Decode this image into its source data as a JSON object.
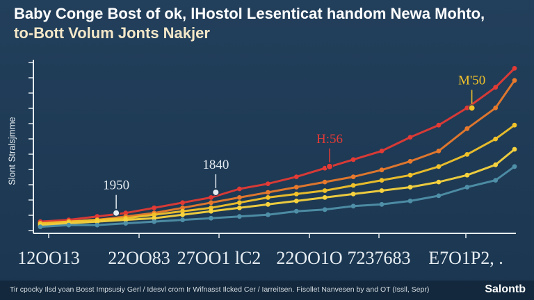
{
  "chart_data": {
    "type": "line",
    "title_line1": "Baby Conge Bost of ok, lHostol Lesenticat handom Newa Mohto,",
    "title_line2": "to-Bott Volum Jonts Nakjer",
    "ylabel": "Slont Stralsjmme",
    "x_ticks": [
      "12OO13",
      "22OO83",
      "27OO1 lC2",
      "22OO1O",
      "7237683",
      "E7O1P2, ."
    ],
    "xlim": [
      0,
      10
    ],
    "ylim": [
      0,
      100
    ],
    "series": [
      {
        "name": "red",
        "color": "#e23a35",
        "x": [
          0.0,
          0.6,
          1.2,
          1.8,
          2.4,
          3.0,
          3.6,
          4.2,
          4.8,
          5.4,
          6.0,
          6.6,
          7.2,
          7.8,
          8.4,
          9.0,
          9.6,
          10.0
        ],
        "y": [
          6,
          7,
          9,
          11,
          14,
          17,
          20,
          25,
          28,
          32,
          37,
          42,
          47,
          55,
          62,
          72,
          84,
          95
        ]
      },
      {
        "name": "orange",
        "color": "#e8792c",
        "x": [
          0.0,
          0.6,
          1.2,
          1.8,
          2.4,
          3.0,
          3.6,
          4.2,
          4.8,
          5.4,
          6.0,
          6.6,
          7.2,
          7.8,
          8.4,
          9.0,
          9.6,
          10.0
        ],
        "y": [
          5,
          6,
          7,
          9,
          11,
          14,
          17,
          20,
          23,
          26,
          29,
          32,
          36,
          41,
          47,
          60,
          72,
          88
        ]
      },
      {
        "name": "gold",
        "color": "#f1c22a",
        "x": [
          0.0,
          0.6,
          1.2,
          1.8,
          2.4,
          3.0,
          3.6,
          4.2,
          4.8,
          5.4,
          6.0,
          6.6,
          7.2,
          7.8,
          8.4,
          9.0,
          9.6,
          10.0
        ],
        "y": [
          5,
          6,
          7,
          8,
          10,
          12,
          14,
          17,
          20,
          22,
          24,
          27,
          30,
          33,
          38,
          45,
          54,
          62
        ]
      },
      {
        "name": "yellow",
        "color": "#f6d23e",
        "x": [
          0.0,
          0.6,
          1.2,
          1.8,
          2.4,
          3.0,
          3.6,
          4.2,
          4.8,
          5.4,
          6.0,
          6.6,
          7.2,
          7.8,
          8.4,
          9.0,
          9.6,
          10.0
        ],
        "y": [
          4,
          5,
          6,
          7,
          8,
          10,
          12,
          14,
          16,
          18,
          20,
          22,
          24,
          26,
          29,
          33,
          39,
          48
        ]
      },
      {
        "name": "teal",
        "color": "#4f8fa8",
        "x": [
          0.0,
          0.6,
          1.2,
          1.8,
          2.4,
          3.0,
          3.6,
          4.2,
          4.8,
          5.4,
          6.0,
          6.6,
          7.2,
          7.8,
          8.4,
          9.0,
          9.6,
          10.0
        ],
        "y": [
          3,
          4,
          4,
          5,
          6,
          7,
          8,
          9,
          10,
          12,
          13,
          15,
          16,
          18,
          21,
          26,
          30,
          38
        ]
      }
    ],
    "annotations": [
      {
        "label": "1950",
        "x": 1.6,
        "y": 11,
        "color": "#e6edf2"
      },
      {
        "label": "1840",
        "x": 3.7,
        "y": 23,
        "color": "#e6edf2"
      },
      {
        "label": "H:56",
        "x": 6.1,
        "y": 38,
        "color": "#e23a35"
      },
      {
        "label": "M'50",
        "x": 9.1,
        "y": 72,
        "color": "#f1c22a"
      }
    ],
    "grid": false,
    "legend": "none"
  },
  "footer": {
    "note": "Tir cpocky Ilsd yoan Bosst Impsusiy Gerl / Idesvl crom Ir Wifnasst Ilcked Cer / Iarreitsen. Fisollet Nanvesen by and OT (Issll, Sepr)",
    "brand": "Salontb"
  }
}
